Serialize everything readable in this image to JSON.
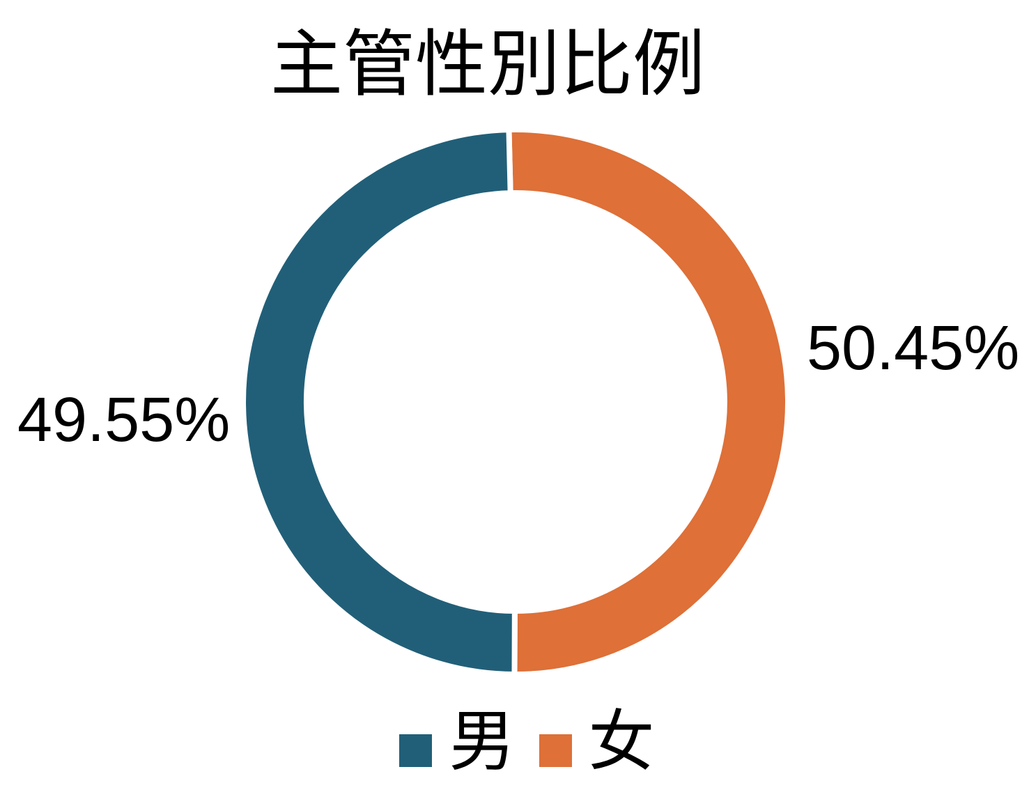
{
  "page": {
    "background": "#FFFFFF"
  },
  "chart_data": {
    "type": "pie",
    "subtype": "doughnut",
    "title": "主管性別比例",
    "series": [
      {
        "key": "male",
        "name": "男",
        "value": 49.55,
        "label": "49.55%",
        "color": "#215F78"
      },
      {
        "key": "female",
        "name": "女",
        "value": 50.45,
        "label": "50.45%",
        "color": "#DE7038"
      }
    ],
    "value_unit": "%",
    "legend_position": "bottom",
    "label_position": "outside",
    "donut_hole_ratio": 0.77,
    "start": "top",
    "direction": "clockwise",
    "draw_order": [
      "female",
      "male"
    ],
    "rotation_deg": -1.4,
    "slice_border_color": "#FFFFFF",
    "slice_border_width": 8
  }
}
